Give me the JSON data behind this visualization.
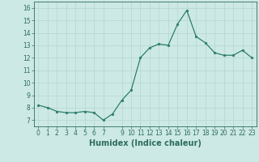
{
  "x": [
    0,
    1,
    2,
    3,
    4,
    5,
    6,
    7,
    8,
    9,
    10,
    11,
    12,
    13,
    14,
    15,
    16,
    17,
    18,
    19,
    20,
    21,
    22,
    23
  ],
  "y": [
    8.2,
    8.0,
    7.7,
    7.6,
    7.6,
    7.7,
    7.6,
    7.0,
    7.5,
    8.6,
    9.4,
    12.0,
    12.8,
    13.1,
    13.0,
    14.7,
    15.8,
    13.7,
    13.2,
    12.4,
    12.2,
    12.2,
    12.6,
    12.0
  ],
  "line_color": "#2e7d6e",
  "marker": "o",
  "marker_size": 1.8,
  "bg_color": "#cce9e5",
  "grid_color": "#b8d8d4",
  "xlabel": "Humidex (Indice chaleur)",
  "xlim": [
    -0.5,
    23.5
  ],
  "ylim": [
    6.5,
    16.5
  ],
  "yticks": [
    7,
    8,
    9,
    10,
    11,
    12,
    13,
    14,
    15,
    16
  ],
  "xticks": [
    0,
    1,
    2,
    3,
    4,
    5,
    6,
    7,
    9,
    10,
    11,
    12,
    13,
    14,
    15,
    16,
    17,
    18,
    19,
    20,
    21,
    22,
    23
  ],
  "tick_color": "#2e6b5e",
  "label_fontsize": 5.5,
  "xlabel_fontsize": 7.0,
  "linewidth": 0.9
}
